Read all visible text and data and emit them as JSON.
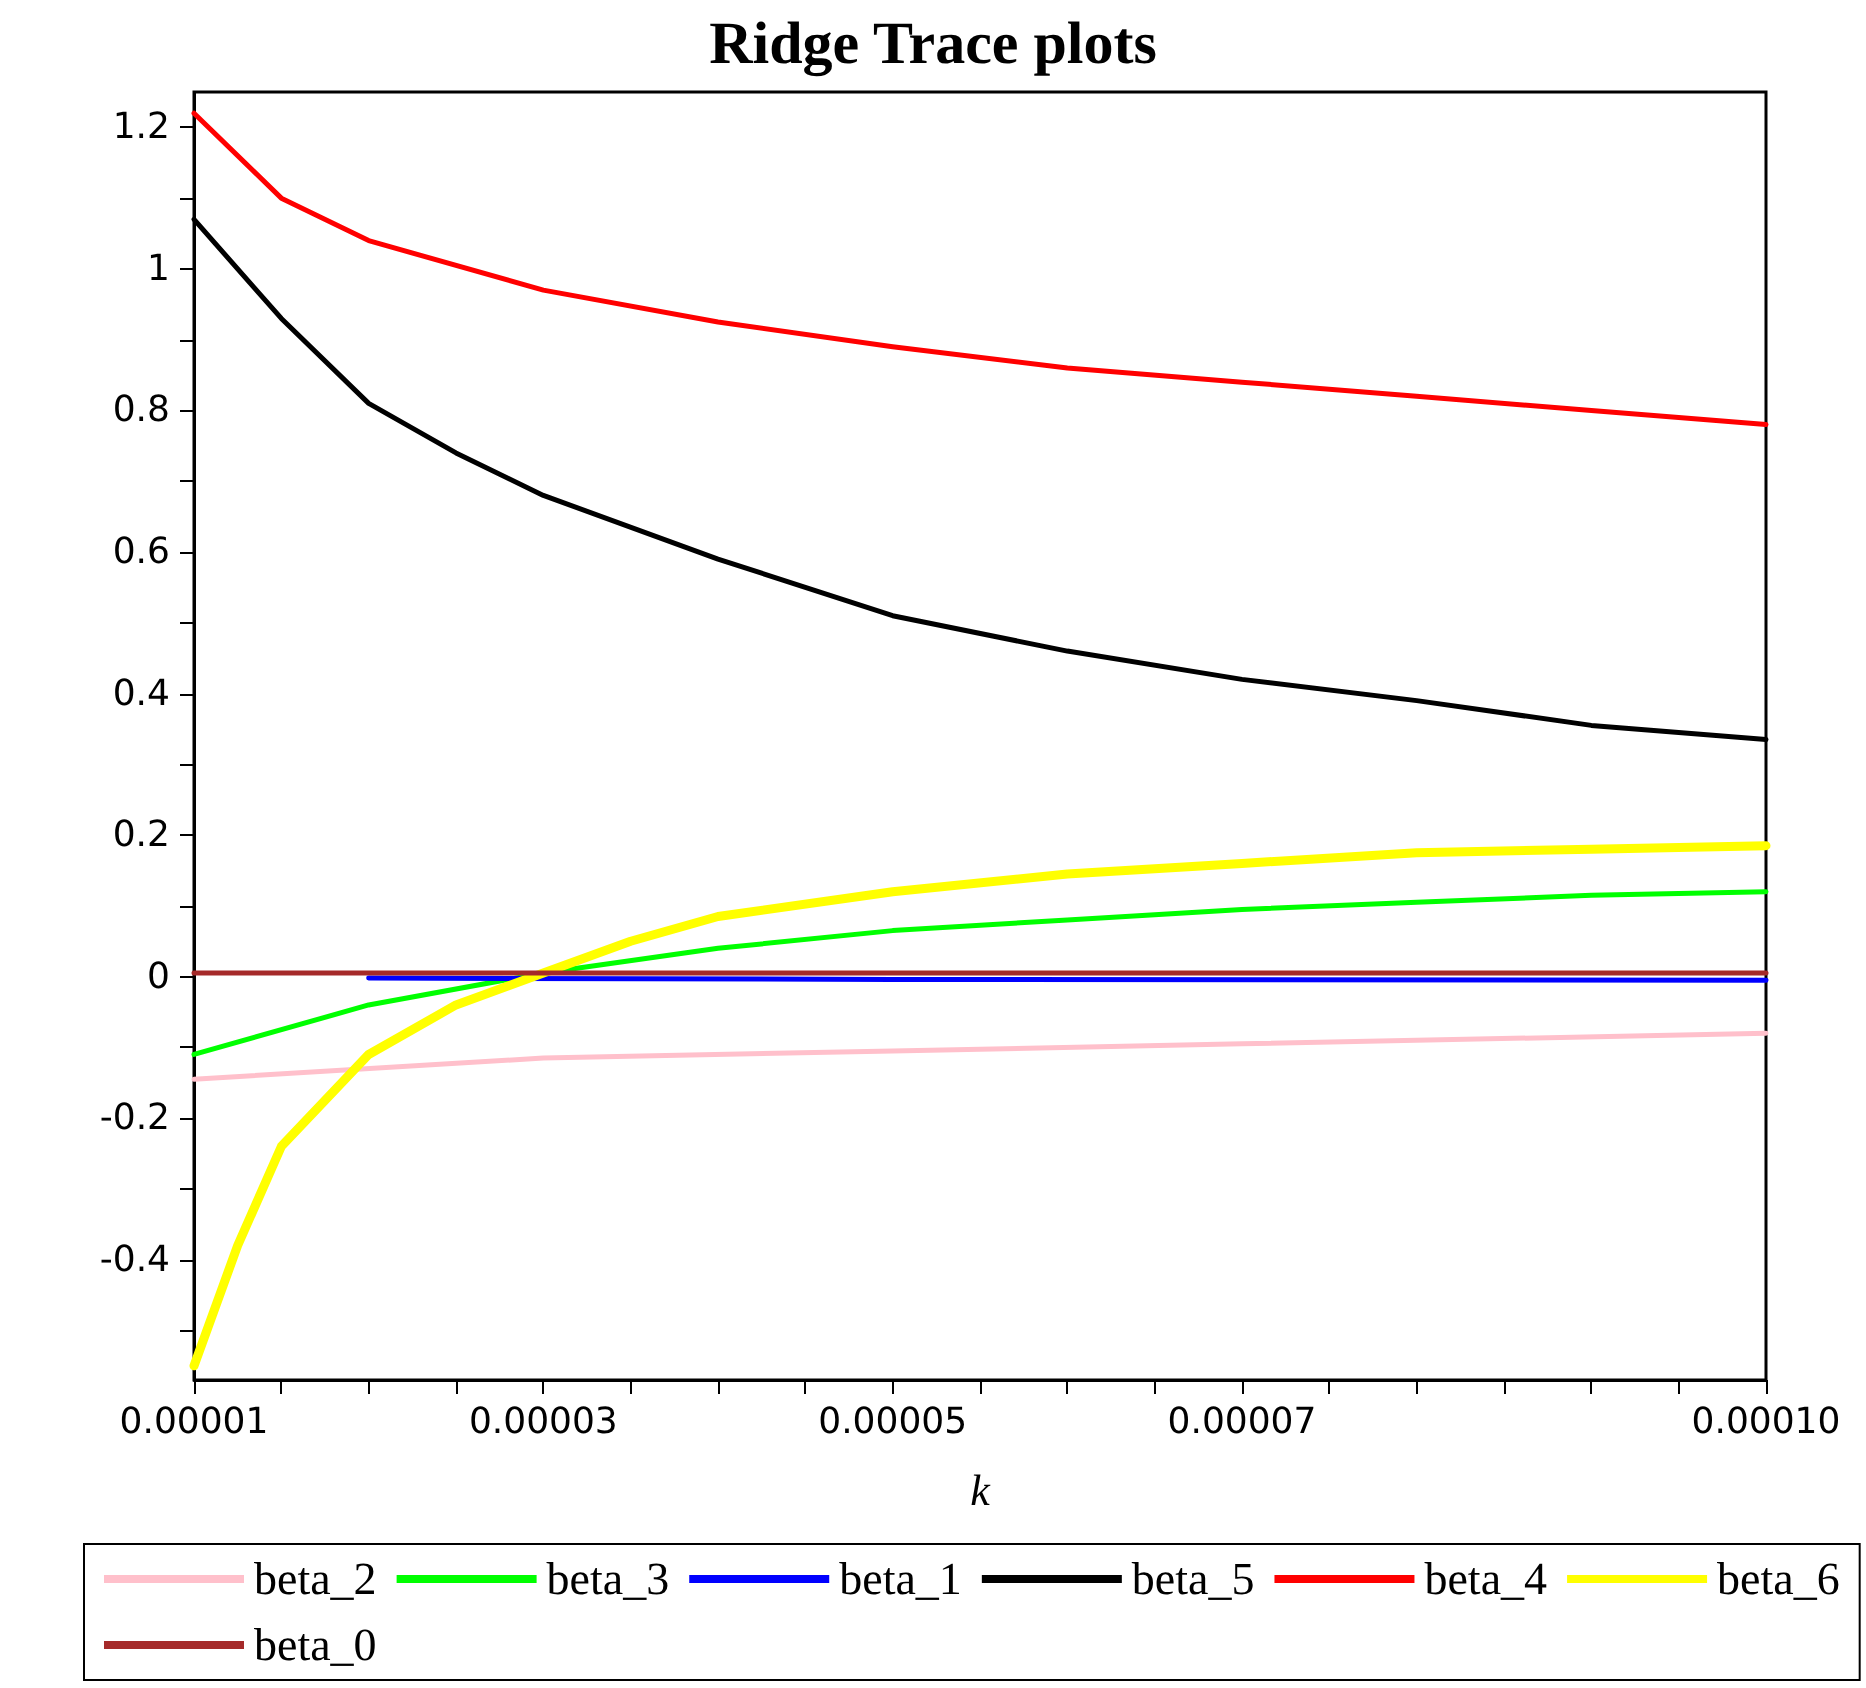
{
  "chart_data": {
    "type": "line",
    "title": "Ridge Trace plots",
    "xlabel": "k",
    "legend": "bottom",
    "grid": false,
    "marker": "none",
    "line_style": "solid",
    "xlim": [
      1e-05,
      0.0001
    ],
    "xticks": [
      {
        "value": 1e-05,
        "label": "0.00001"
      },
      {
        "value": 1.5e-05,
        "label": null
      },
      {
        "value": 2e-05,
        "label": null
      },
      {
        "value": 2.5e-05,
        "label": null
      },
      {
        "value": 3e-05,
        "label": "0.00003"
      },
      {
        "value": 3.5e-05,
        "label": null
      },
      {
        "value": 4e-05,
        "label": null
      },
      {
        "value": 4.5e-05,
        "label": null
      },
      {
        "value": 5e-05,
        "label": "0.00005"
      },
      {
        "value": 5.5e-05,
        "label": null
      },
      {
        "value": 6e-05,
        "label": null
      },
      {
        "value": 6.5e-05,
        "label": null
      },
      {
        "value": 7e-05,
        "label": "0.00007"
      },
      {
        "value": 7.5e-05,
        "label": null
      },
      {
        "value": 8e-05,
        "label": null
      },
      {
        "value": 8.5e-05,
        "label": null
      },
      {
        "value": 9e-05,
        "label": null
      },
      {
        "value": 9.5e-05,
        "label": null
      },
      {
        "value": 0.0001,
        "label": "0.00010"
      }
    ],
    "ylim": [
      -0.57,
      1.25
    ],
    "yticks": [
      {
        "value": -0.5,
        "label": null
      },
      -0.4,
      {
        "value": -0.3,
        "label": null
      },
      -0.2,
      {
        "value": -0.1,
        "label": null
      },
      0,
      {
        "value": 0.1,
        "label": null
      },
      0.2,
      {
        "value": 0.3,
        "label": null
      },
      0.4,
      {
        "value": 0.5,
        "label": null
      },
      0.6,
      {
        "value": 0.7,
        "label": null
      },
      0.8,
      {
        "value": 0.9,
        "label": null
      },
      1,
      {
        "value": 1.1,
        "label": null
      },
      1.2
    ],
    "series": [
      {
        "name": "beta_2",
        "color": "#ffc0cb",
        "x": [
          1e-05,
          3e-05,
          5e-05,
          7e-05,
          0.0001
        ],
        "values": [
          -0.145,
          -0.115,
          -0.105,
          -0.095,
          -0.08
        ]
      },
      {
        "name": "beta_3",
        "color": "#00ff00",
        "x": [
          1e-05,
          2e-05,
          3e-05,
          4e-05,
          5e-05,
          6e-05,
          7e-05,
          8e-05,
          9e-05,
          0.0001
        ],
        "values": [
          -0.11,
          -0.04,
          0.005,
          0.04,
          0.065,
          0.08,
          0.095,
          0.105,
          0.115,
          0.12
        ]
      },
      {
        "name": "beta_1",
        "color": "#0000ff",
        "x": [
          2e-05,
          5e-05,
          0.0001
        ],
        "values": [
          -0.002,
          -0.004,
          -0.005
        ]
      },
      {
        "name": "beta_5",
        "color": "#000000",
        "x": [
          1e-05,
          1.5e-05,
          2e-05,
          2.5e-05,
          3e-05,
          4e-05,
          5e-05,
          6e-05,
          7e-05,
          8e-05,
          9e-05,
          0.0001
        ],
        "values": [
          1.07,
          0.93,
          0.81,
          0.74,
          0.68,
          0.59,
          0.51,
          0.46,
          0.42,
          0.39,
          0.355,
          0.335
        ]
      },
      {
        "name": "beta_4",
        "color": "#ff0000",
        "x": [
          1e-05,
          1.5e-05,
          2e-05,
          3e-05,
          4e-05,
          5e-05,
          6e-05,
          7e-05,
          8e-05,
          9e-05,
          0.0001
        ],
        "values": [
          1.22,
          1.1,
          1.04,
          0.97,
          0.925,
          0.89,
          0.86,
          0.84,
          0.82,
          0.8,
          0.78
        ]
      },
      {
        "name": "beta_6",
        "color": "#ffff00",
        "x": [
          1e-05,
          1.25e-05,
          1.5e-05,
          2e-05,
          2.5e-05,
          3e-05,
          3.5e-05,
          4e-05,
          5e-05,
          6e-05,
          7e-05,
          8e-05,
          9e-05,
          0.0001
        ],
        "values": [
          -0.55,
          -0.38,
          -0.24,
          -0.11,
          -0.04,
          0.005,
          0.05,
          0.085,
          0.12,
          0.145,
          0.16,
          0.175,
          0.18,
          0.185
        ]
      },
      {
        "name": "beta_0",
        "color": "#a52a2a",
        "x": [
          1e-05,
          0.0001
        ],
        "values": [
          0.005,
          0.005
        ]
      }
    ]
  }
}
